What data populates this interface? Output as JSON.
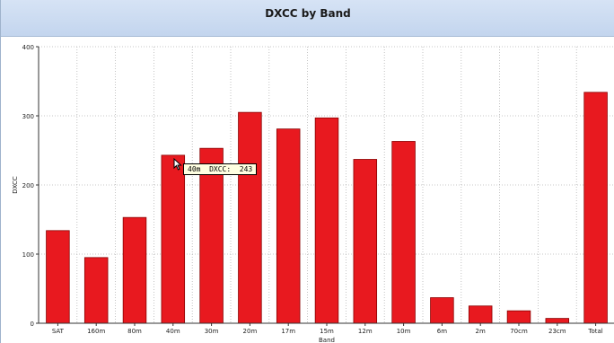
{
  "window": {
    "title": "DXCC by Band"
  },
  "colors": {
    "bar": "#e8191f",
    "bar_edge": "#8a0000",
    "grid": "#b5b5b5",
    "plot_bg": "#ffffff"
  },
  "tooltip": {
    "text": "40m  DXCC:  243"
  },
  "cursor": {
    "icon": "pointer-arrow-icon"
  },
  "chart_data": {
    "type": "bar",
    "title": "DXCC by Band",
    "xlabel": "Band",
    "ylabel": "DXCC",
    "ylim": [
      0,
      400
    ],
    "yticks": [
      0,
      100,
      200,
      300,
      400
    ],
    "grid": true,
    "categories": [
      "SAT",
      "160m",
      "80m",
      "40m",
      "30m",
      "20m",
      "17m",
      "15m",
      "12m",
      "10m",
      "6m",
      "2m",
      "70cm",
      "23cm",
      "Total"
    ],
    "values": [
      134,
      95,
      153,
      243,
      253,
      305,
      281,
      297,
      237,
      263,
      37,
      25,
      18,
      7,
      334
    ]
  }
}
